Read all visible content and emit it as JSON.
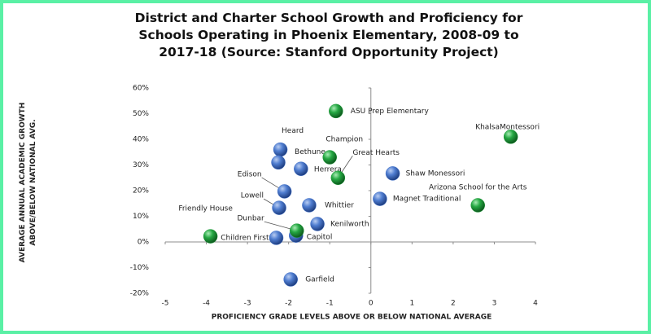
{
  "chart_data": {
    "type": "scatter",
    "title": "District and Charter School Growth and Proficiency for Schools Operating in Phoenix Elementary, 2008-09 to 2017-18 (Source: Stanford Opportunity Project)",
    "x_label": "PROFICIENCY GRADE LEVELS ABOVE OR BELOW NATIONAL AVERAGE",
    "y_label": "AVERAGE ANNUAL ACADEMIC GROWTH ABOVE/BELOW NATIONAL AVG.",
    "xlim": [
      -5,
      4
    ],
    "xticks": [
      -5,
      -4,
      -3,
      -2,
      -1,
      0,
      1,
      2,
      3,
      4
    ],
    "ylim": [
      -20,
      60
    ],
    "yticks": [
      {
        "value": -20,
        "label": "-20%"
      },
      {
        "value": -10,
        "label": "-10%"
      },
      {
        "value": 0,
        "label": "0%"
      },
      {
        "value": 10,
        "label": "10%"
      },
      {
        "value": 20,
        "label": "20%"
      },
      {
        "value": 30,
        "label": "30%"
      },
      {
        "value": 40,
        "label": "40%"
      },
      {
        "value": 50,
        "label": "50%"
      },
      {
        "value": 60,
        "label": "60%"
      }
    ],
    "series": [
      {
        "color": "#3f6fc8",
        "labels": [
          "Heard",
          "Bethune",
          "Herrera",
          "Shaw Monessori",
          "Edison",
          "Lowell",
          "Whittier",
          "Magnet Traditional",
          "Kenilworth",
          "Capitol",
          "Children First",
          "Garfield"
        ],
        "x": [
          -2.2,
          -2.25,
          -1.7,
          0.53,
          -2.1,
          -2.23,
          -1.5,
          0.22,
          -1.3,
          -1.82,
          -2.3,
          -1.95
        ],
        "values": [
          36,
          31,
          28.5,
          26.7,
          19.7,
          13.3,
          14.3,
          16.8,
          7,
          2.5,
          1.6,
          -14.6
        ]
      },
      {
        "color": "#1e9a3a",
        "labels": [
          "ASU Prep Elementary",
          "KhalsaMontessori",
          "Champion",
          "Great Hearts",
          "Arizona School for the Arts",
          "Dunbar",
          "Friendly House"
        ],
        "x": [
          -0.85,
          3.4,
          -1,
          -0.8,
          2.6,
          -1.8,
          -3.9
        ],
        "values": [
          51,
          41,
          33,
          25,
          14.3,
          4.4,
          2.2
        ]
      }
    ]
  }
}
